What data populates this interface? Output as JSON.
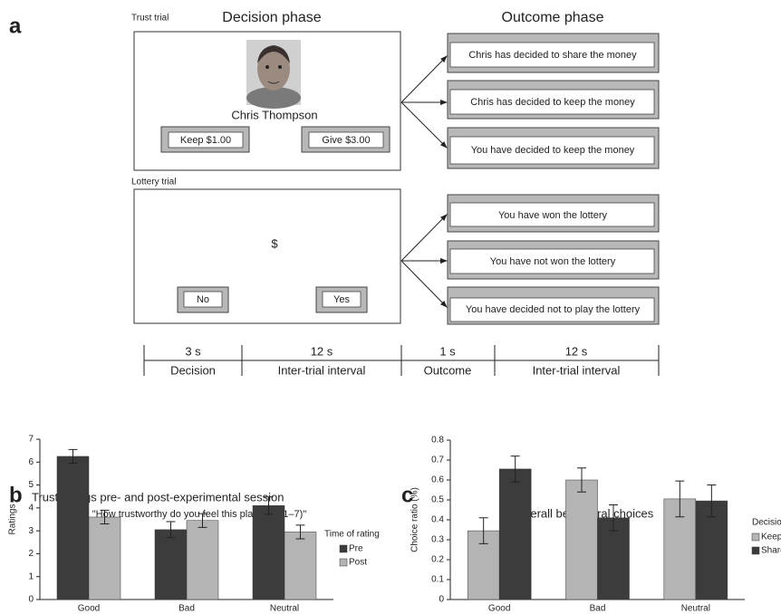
{
  "panel_a": {
    "label": "a",
    "phases": [
      "Decision phase",
      "Outcome phase"
    ],
    "trust_trial": {
      "label": "Trust trial",
      "player": "Chris Thompson",
      "buttons": [
        "Keep $1.00",
        "Give $3.00"
      ],
      "outcomes": [
        "Chris has decided to share the money",
        "Chris has decided to keep the money",
        "You have decided to keep the money"
      ]
    },
    "lottery_trial": {
      "label": "Lottery trial",
      "symbol": "$",
      "buttons": [
        "No",
        "Yes"
      ],
      "outcomes": [
        "You have won the lottery",
        "You have not won the lottery",
        "You have decided not to play the lottery"
      ]
    },
    "timeline": {
      "durations": [
        "3 s",
        "12 s",
        "1 s",
        "12 s"
      ],
      "stages": [
        "Decision",
        "Inter-trial interval",
        "Outcome",
        "Inter-trial interval"
      ]
    }
  },
  "chart_data": [
    {
      "type": "bar",
      "panel_label": "b",
      "title": "Trust ratings pre- and post-experimental session",
      "subtitle": "\"How trustworthy do you feel this player is (1–7)\"",
      "y_label": "Ratings",
      "categories": [
        "Good",
        "Bad",
        "Neutral"
      ],
      "series": [
        {
          "name": "Pre",
          "color": "#3c3c3c",
          "values": [
            6.25,
            3.05,
            4.1
          ],
          "errors": [
            0.3,
            0.35,
            0.38
          ]
        },
        {
          "name": "Post",
          "color": "#b4b4b4",
          "values": [
            3.6,
            3.45,
            2.95
          ],
          "errors": [
            0.3,
            0.3,
            0.3
          ]
        }
      ],
      "legend_title": "Time of rating",
      "ylim": [
        0,
        7
      ],
      "yticks": [
        0,
        1,
        2,
        3,
        4,
        5,
        6,
        7
      ],
      "grid": false
    },
    {
      "type": "bar",
      "panel_label": "c",
      "title": "Overall behavioral choices",
      "y_label": "Choice ratio (%)",
      "categories": [
        "Good",
        "Bad",
        "Neutral"
      ],
      "series": [
        {
          "name": "Keep",
          "color": "#b4b4b4",
          "values": [
            0.345,
            0.6,
            0.505
          ],
          "errors": [
            0.065,
            0.06,
            0.09
          ]
        },
        {
          "name": "Share",
          "color": "#3c3c3c",
          "values": [
            0.655,
            0.41,
            0.495
          ],
          "errors": [
            0.065,
            0.065,
            0.08
          ]
        }
      ],
      "legend_title": "Decision",
      "ylim": [
        0,
        0.8
      ],
      "yticks": [
        0,
        0.1,
        0.2,
        0.3,
        0.4,
        0.5,
        0.6,
        0.7,
        0.8
      ],
      "grid": false
    }
  ]
}
